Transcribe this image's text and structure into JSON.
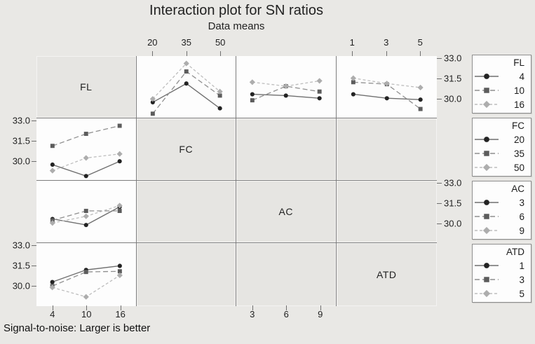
{
  "title": "Interaction plot for SN ratios",
  "subtitle": "Data means",
  "footer": "Signal-to-noise: Larger is better",
  "colors": {
    "background": "#e9e8e5",
    "panel_background": "#fdfdfd",
    "grid_border": "#7d7d7d",
    "text": "#1c1c1c"
  },
  "chart_data": {
    "type": "line",
    "kind": "interaction-plot-matrix",
    "title": "Interaction plot for SN ratios",
    "subtitle": "Data means",
    "footnote": "Signal-to-noise: Larger is better",
    "ylim": [
      28.55,
      33.15
    ],
    "ytick_labels": [
      "33.0",
      "31.5",
      "30.0"
    ],
    "yticks": [
      33.0,
      31.5,
      30.0
    ],
    "grid": false,
    "factors": [
      {
        "name": "FL",
        "levels": [
          "4",
          "10",
          "16"
        ]
      },
      {
        "name": "FC",
        "levels": [
          "20",
          "35",
          "50"
        ]
      },
      {
        "name": "AC",
        "levels": [
          "3",
          "6",
          "9"
        ]
      },
      {
        "name": "ATD",
        "levels": [
          "1",
          "3",
          "5"
        ]
      }
    ],
    "pair_means": {
      "FL_FC": {
        "row_factor": "FL",
        "col_factor": "FC",
        "values": [
          [
            29.7,
            31.1,
            29.25
          ],
          [
            28.85,
            32.0,
            30.2
          ],
          [
            29.95,
            32.6,
            30.5
          ]
        ]
      },
      "FL_AC": {
        "row_factor": "FL",
        "col_factor": "AC",
        "values": [
          [
            30.3,
            30.2,
            30.0
          ],
          [
            29.85,
            30.9,
            30.5
          ],
          [
            31.2,
            30.9,
            31.3
          ]
        ]
      },
      "FL_ATD": {
        "row_factor": "FL",
        "col_factor": "ATD",
        "values": [
          [
            30.3,
            30.0,
            29.9
          ],
          [
            31.2,
            31.05,
            29.2
          ],
          [
            31.5,
            31.1,
            30.8
          ]
        ]
      }
    },
    "panels": [
      {
        "row": 0,
        "col": 1,
        "pair": "FL_FC",
        "x_factor": "FC",
        "line_factor": "FL"
      },
      {
        "row": 0,
        "col": 2,
        "pair": "FL_AC",
        "x_factor": "AC",
        "line_factor": "FL"
      },
      {
        "row": 0,
        "col": 3,
        "pair": "FL_ATD",
        "x_factor": "ATD",
        "line_factor": "FL"
      },
      {
        "row": 1,
        "col": 0,
        "pair": "FL_FC",
        "x_factor": "FL",
        "line_factor": "FC"
      },
      {
        "row": 2,
        "col": 0,
        "pair": "FL_AC",
        "x_factor": "FL",
        "line_factor": "AC"
      },
      {
        "row": 3,
        "col": 0,
        "pair": "FL_ATD",
        "x_factor": "FL",
        "line_factor": "ATD"
      }
    ],
    "diagonal": [
      {
        "row": 0,
        "col": 0,
        "label": "FL"
      },
      {
        "row": 1,
        "col": 1,
        "label": "FC"
      },
      {
        "row": 2,
        "col": 2,
        "label": "AC"
      },
      {
        "row": 3,
        "col": 3,
        "label": "ATD"
      }
    ],
    "axes": {
      "top": [
        {
          "col": 1,
          "labels": [
            "20",
            "35",
            "50"
          ]
        },
        {
          "col": 3,
          "labels": [
            "1",
            "3",
            "5"
          ]
        }
      ],
      "bottom": [
        {
          "col": 0,
          "labels": [
            "4",
            "10",
            "16"
          ]
        },
        {
          "col": 2,
          "labels": [
            "3",
            "6",
            "9"
          ]
        }
      ],
      "left_rows": [
        1,
        3
      ],
      "right_rows": [
        0,
        2
      ]
    },
    "series_styles": [
      {
        "marker": "circle",
        "line": "solid",
        "line_color": "#6f6f6f",
        "marker_color": "#232323"
      },
      {
        "marker": "square",
        "line": "dashed",
        "line_color": "#8f8f8f",
        "marker_color": "#5c5c5c"
      },
      {
        "marker": "diamond",
        "line": "dashed-light",
        "line_color": "#bdbdbd",
        "marker_color": "#adadad"
      }
    ]
  },
  "legends": [
    {
      "title": "FL",
      "items": [
        "4",
        "10",
        "16"
      ]
    },
    {
      "title": "FC",
      "items": [
        "20",
        "35",
        "50"
      ]
    },
    {
      "title": "AC",
      "items": [
        "3",
        "6",
        "9"
      ]
    },
    {
      "title": "ATD",
      "items": [
        "1",
        "3",
        "5"
      ]
    }
  ]
}
